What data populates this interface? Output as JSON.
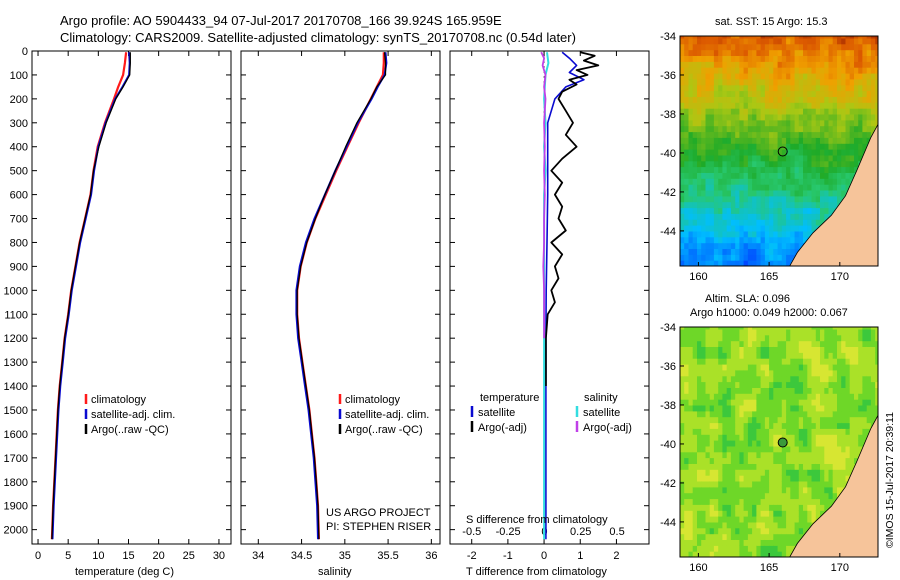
{
  "header": {
    "title_line1": "Argo profile: AO 5904433_94 07-Jul-2017 20170708_166 39.924S 165.959E",
    "title_line2": "Climatology: CARS2009. Satellite-adjusted climatology: synTS_20170708.nc (0.54d later)"
  },
  "colors": {
    "climatology": "#ff1a1a",
    "satellite": "#0a0ad0",
    "argo": "#000000",
    "sat_salinity": "#33dde0",
    "argo_salinity": "#c040e8",
    "land": "#f6c49a"
  },
  "chart_data": [
    {
      "type": "line",
      "name": "temperature-profile",
      "xlabel": "temperature (deg C)",
      "ylabel": "",
      "xlim": [
        -1,
        32
      ],
      "ylim": [
        2060,
        0
      ],
      "x_ticks": [
        0,
        5,
        10,
        15,
        20,
        25,
        30
      ],
      "y_ticks": [
        0,
        100,
        200,
        300,
        400,
        500,
        600,
        700,
        800,
        900,
        1000,
        1100,
        1200,
        1300,
        1400,
        1500,
        1600,
        1700,
        1800,
        1900,
        2000
      ],
      "legend": [
        "climatology",
        "satellite-adj. clim.",
        "Argo(..raw -QC)"
      ],
      "legend_position": "center",
      "series": [
        {
          "name": "climatology",
          "depth": [
            5,
            50,
            100,
            150,
            200,
            300,
            400,
            500,
            600,
            700,
            800,
            900,
            1000,
            1100,
            1200,
            1300,
            1400,
            1500,
            1600,
            1700,
            1800,
            1900,
            2040
          ],
          "values": [
            14.6,
            14.4,
            14.1,
            13.3,
            12.6,
            11.1,
            9.9,
            9.2,
            8.7,
            7.8,
            6.9,
            6.2,
            5.5,
            5.0,
            4.4,
            4.0,
            3.6,
            3.3,
            3.1,
            2.9,
            2.7,
            2.5,
            2.3
          ]
        },
        {
          "name": "satellite-adj. clim.",
          "depth": [
            5,
            50,
            100,
            150,
            200,
            300,
            400,
            500,
            600,
            700,
            800,
            900,
            1000,
            1100,
            1200,
            1300,
            1400,
            1500,
            1600,
            1700,
            1800,
            1900,
            2040
          ],
          "values": [
            15.1,
            15.2,
            15.1,
            14.0,
            12.8,
            11.2,
            10.0,
            9.3,
            8.8,
            7.9,
            7.0,
            6.3,
            5.6,
            5.1,
            4.5,
            4.1,
            3.7,
            3.4,
            3.2,
            3.0,
            2.8,
            2.6,
            2.4
          ]
        },
        {
          "name": "Argo(..raw -QC)",
          "depth": [
            5,
            50,
            100,
            150,
            200,
            300,
            400,
            500,
            600,
            700,
            800,
            900,
            1000,
            1100,
            1200,
            1300,
            1400,
            1500,
            1600,
            1700,
            1800,
            1900,
            2040
          ],
          "values": [
            15.3,
            15.3,
            15.2,
            14.1,
            12.9,
            11.3,
            10.1,
            9.2,
            8.7,
            7.8,
            6.9,
            6.2,
            5.5,
            5.0,
            4.4,
            4.0,
            3.6,
            3.3,
            3.1,
            2.9,
            2.7,
            2.5,
            2.3
          ]
        }
      ]
    },
    {
      "type": "line",
      "name": "salinity-profile",
      "xlabel": "salinity",
      "xlim": [
        33.8,
        36.1
      ],
      "ylim": [
        2060,
        0
      ],
      "x_ticks": [
        34,
        34.5,
        35,
        35.5,
        36
      ],
      "legend": [
        "climatology",
        "satellite-adj. clim.",
        "Argo(..raw -QC)"
      ],
      "legend_position": "lower-right",
      "series": [
        {
          "name": "climatology",
          "depth": [
            5,
            50,
            100,
            150,
            200,
            300,
            400,
            500,
            600,
            700,
            800,
            900,
            1000,
            1100,
            1200,
            1300,
            1400,
            1500,
            1600,
            1700,
            1800,
            1900,
            2040
          ],
          "values": [
            35.45,
            35.45,
            35.44,
            35.37,
            35.3,
            35.16,
            35.03,
            34.9,
            34.78,
            34.66,
            34.56,
            34.49,
            34.45,
            34.45,
            34.47,
            34.51,
            34.55,
            34.59,
            34.62,
            34.65,
            34.67,
            34.69,
            34.7
          ]
        },
        {
          "name": "satellite-adj. clim.",
          "depth": [
            5,
            50,
            100,
            150,
            200,
            300,
            400,
            500,
            600,
            700,
            800,
            900,
            1000,
            1100,
            1200,
            1300,
            1400,
            1500,
            1600,
            1700,
            1800,
            1900,
            2040
          ],
          "values": [
            35.47,
            35.48,
            35.46,
            35.38,
            35.31,
            35.15,
            35.02,
            34.89,
            34.77,
            34.65,
            34.55,
            34.48,
            34.44,
            34.44,
            34.46,
            34.5,
            34.54,
            34.58,
            34.61,
            34.64,
            34.66,
            34.68,
            34.69
          ]
        },
        {
          "name": "Argo(..raw -QC)",
          "depth": [
            5,
            50,
            100,
            150,
            200,
            300,
            400,
            500,
            600,
            700,
            800,
            900,
            1000,
            1100,
            1200,
            1300,
            1400,
            1500,
            1600,
            1700,
            1800,
            1900,
            2040
          ],
          "values": [
            35.46,
            35.47,
            35.47,
            35.37,
            35.3,
            35.14,
            35.01,
            34.89,
            34.77,
            34.66,
            34.56,
            34.49,
            34.45,
            34.45,
            34.47,
            34.51,
            34.55,
            34.59,
            34.62,
            34.65,
            34.67,
            34.69,
            34.7
          ]
        }
      ],
      "annotations": [
        "US ARGO PROJECT",
        "PI: STEPHEN RISER"
      ]
    },
    {
      "type": "line",
      "name": "difference-profile",
      "xlabel": "T difference from climatology",
      "xlabel_top": "S difference from climatology",
      "xlim": [
        -2.6,
        2.9
      ],
      "ylim": [
        2060,
        0
      ],
      "x_ticks": [
        -2,
        -1,
        0,
        1,
        2
      ],
      "x_ticks_top": [
        -0.5,
        -0.25,
        0,
        0.25,
        0.5
      ],
      "legend_temperature_title": "temperature",
      "legend_salinity_title": "salinity",
      "legend_temperature": [
        "satellite",
        "Argo(-adj)"
      ],
      "legend_salinity": [
        "satellite",
        "Argo(-adj)"
      ],
      "series": [
        {
          "name": "temperature satellite",
          "depth": [
            5,
            30,
            60,
            90,
            120,
            150,
            200,
            300,
            400,
            500,
            600,
            800,
            1000,
            1200,
            1400,
            1600,
            1800,
            2040
          ],
          "values": [
            0.5,
            0.7,
            0.9,
            0.7,
            1.1,
            0.6,
            0.3,
            0.1,
            0.1,
            0.1,
            0.1,
            0.08,
            0.06,
            0.05,
            0.05,
            0.05,
            0.05,
            0.05
          ]
        },
        {
          "name": "temperature Argo(-adj)",
          "depth": [
            5,
            20,
            40,
            60,
            80,
            100,
            120,
            140,
            170,
            200,
            250,
            300,
            350,
            400,
            450,
            500,
            550,
            600,
            650,
            700,
            750,
            800,
            850,
            900,
            950,
            1000,
            1050,
            1100,
            1200,
            1300,
            1400
          ],
          "values": [
            1.0,
            1.4,
            1.1,
            1.5,
            0.9,
            1.2,
            0.7,
            0.9,
            0.5,
            0.4,
            0.6,
            0.8,
            0.6,
            0.9,
            0.5,
            0.2,
            0.5,
            0.3,
            0.5,
            0.4,
            0.6,
            0.2,
            0.5,
            0.3,
            0.4,
            0.2,
            0.3,
            0.1,
            0.05,
            0.05,
            0.05
          ]
        },
        {
          "name": "salinity satellite",
          "depth": [
            5,
            50,
            100,
            200,
            300,
            400,
            500,
            600,
            800,
            1000,
            1200,
            1400,
            1600,
            1800,
            2040
          ],
          "values": [
            0.02,
            0.03,
            0.01,
            0.0,
            0.01,
            0.0,
            0.01,
            0.0,
            0.0,
            0.0,
            0.0,
            0.0,
            0.0,
            0.0,
            0.0
          ]
        },
        {
          "name": "salinity Argo(-adj)",
          "depth": [
            5,
            30,
            60,
            100,
            150,
            200,
            300,
            400,
            500,
            600,
            700,
            800,
            900,
            1000,
            1100,
            1200
          ],
          "values": [
            -0.02,
            0.0,
            -0.01,
            0.01,
            0.0,
            0.01,
            0.0,
            0.005,
            0.0,
            0.005,
            0.0,
            0.0,
            -0.005,
            0.0,
            0.0,
            0.0
          ]
        }
      ]
    },
    {
      "type": "heatmap",
      "name": "sst-map",
      "title": "sat. SST: 15 Argo: 15.3",
      "xlim": [
        158.7,
        172.7
      ],
      "ylim": [
        -45.8,
        -34
      ],
      "x_ticks": [
        160,
        165,
        170
      ],
      "y_ticks": [
        -34,
        -36,
        -38,
        -40,
        -42,
        -44
      ],
      "argo_position": {
        "lon": 165.959,
        "lat": -39.924
      }
    },
    {
      "type": "heatmap",
      "name": "sla-map",
      "title_line1": "Altim. SLA: 0.096",
      "title_line2": "Argo h1000: 0.049 h2000: 0.067",
      "xlim": [
        158.7,
        172.7
      ],
      "ylim": [
        -45.8,
        -34
      ],
      "x_ticks": [
        160,
        165,
        170
      ],
      "y_ticks": [
        -34,
        -36,
        -38,
        -40,
        -42,
        -44
      ],
      "argo_position": {
        "lon": 165.959,
        "lat": -39.924
      }
    }
  ],
  "footer": {
    "stamp": "©IMOS 15-Jul-2017 20:39:11"
  }
}
